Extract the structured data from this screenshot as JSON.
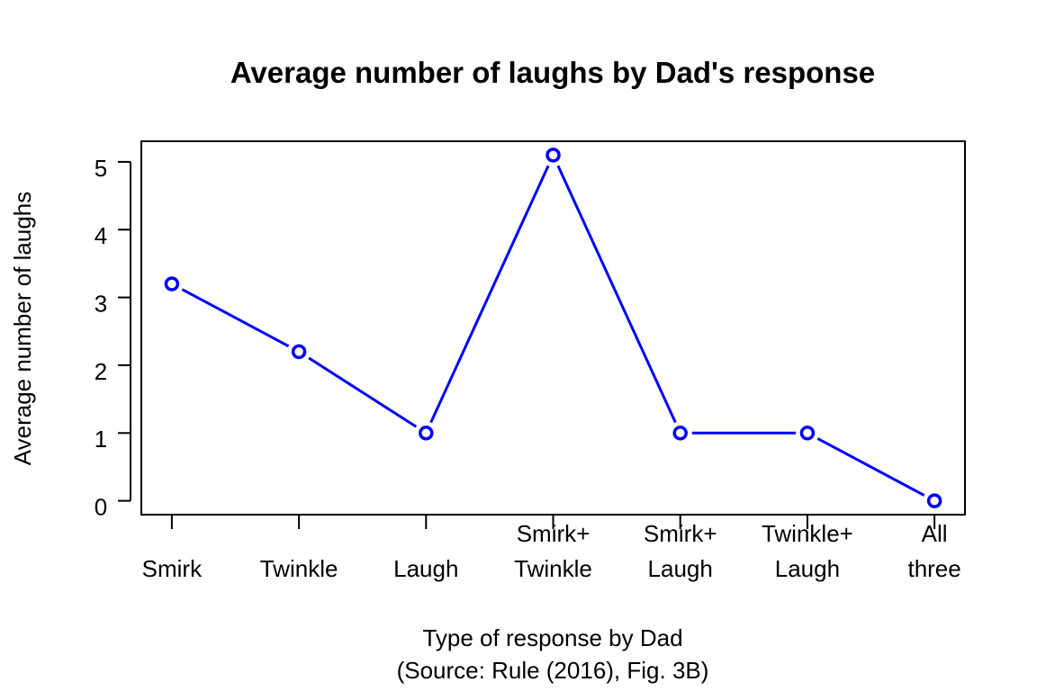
{
  "chart_data": {
    "type": "line",
    "title": "Average number of laughs by Dad's response",
    "xlabel": "Type of response by Dad",
    "xlabel_sub": "(Source: Rule (2016), Fig. 3B)",
    "ylabel": "Average number of laughs",
    "categories": [
      "Smirk",
      "Twinkle",
      "Laugh",
      "Smirk+\nTwinkle",
      "Smirk+\nLaugh",
      "Twinkle+\nLaugh",
      "All\nthree"
    ],
    "values": [
      3.2,
      2.2,
      1.0,
      5.1,
      1.0,
      1.0,
      0.0
    ],
    "yticks": [
      0,
      1,
      2,
      3,
      4,
      5
    ],
    "ylim": [
      0,
      5.1
    ],
    "grid": false,
    "series_color": "#0000ff",
    "marker": "open-circle"
  }
}
